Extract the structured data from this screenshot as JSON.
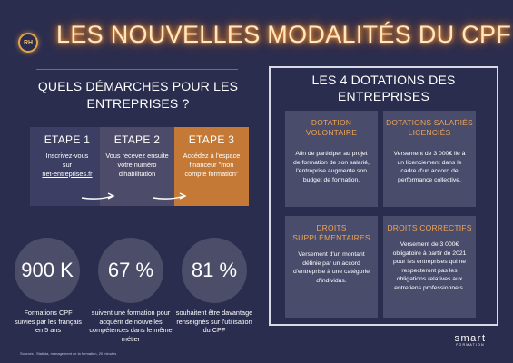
{
  "header": {
    "badge_text": "RH",
    "title": "LES NOUVELLES MODALITÉS DU CPF"
  },
  "left": {
    "section_title": "QUELS DÉMARCHES POUR LES ENTREPRISES ?",
    "steps": [
      {
        "label": "ETAPE 1",
        "text_lines": [
          "Inscrivez-vous",
          "sur"
        ],
        "link": "net-entreprises.fr"
      },
      {
        "label": "ETAPE 2",
        "text": "Vous recevez ensuite votre numéro d'habilitation"
      },
      {
        "label": "ETAPE 3",
        "text": "Accédez à l'espace financeur \"mon compte formation\""
      }
    ],
    "stats": [
      {
        "value": "900 K",
        "text": "Formations CPF suivies par les français en 5 ans"
      },
      {
        "value": "67 %",
        "text": "suivent une formation pour acquérir de nouvelles compétences dans le même métier"
      },
      {
        "value": "81 %",
        "text": "souhaitent être davantage renseignés sur l'utilisation du CPF"
      }
    ],
    "sources": "Sources : Statista, management de la formation, 20 minutes"
  },
  "right": {
    "section_title": "LES 4 DOTATIONS DES ENTREPRISES",
    "cards": [
      {
        "title": "DOTATION VOLONTAIRE",
        "text": "Afin de participer au projet de formation de son salarié, l'entreprise augmente son budget de formation."
      },
      {
        "title": "DOTATIONS SALARIÉS LICENCIÉS",
        "text": "Versement de 3 000€ lié à un licenciement dans le cadre d'un accord de performance collective."
      },
      {
        "title": "DROITS SUPPLÉMENTAIRES",
        "text": "Versement d'un montant définie par un accord d'entreprise à une catégorie d'individus."
      },
      {
        "title": "DROITS CORRECTIFS",
        "text": "Versement de 3 000€ obligatoire à partir de 2021 pour les entreprises qui ne respecteront pas les obligations relatives aux entretiens professionnels."
      }
    ]
  },
  "logo": {
    "word": "smart",
    "sub": "FORMATION"
  },
  "colors": {
    "background": "#2b2d4f",
    "accent": "#f0a452",
    "step3": "#c47a36",
    "card": "#4a4c6b"
  }
}
